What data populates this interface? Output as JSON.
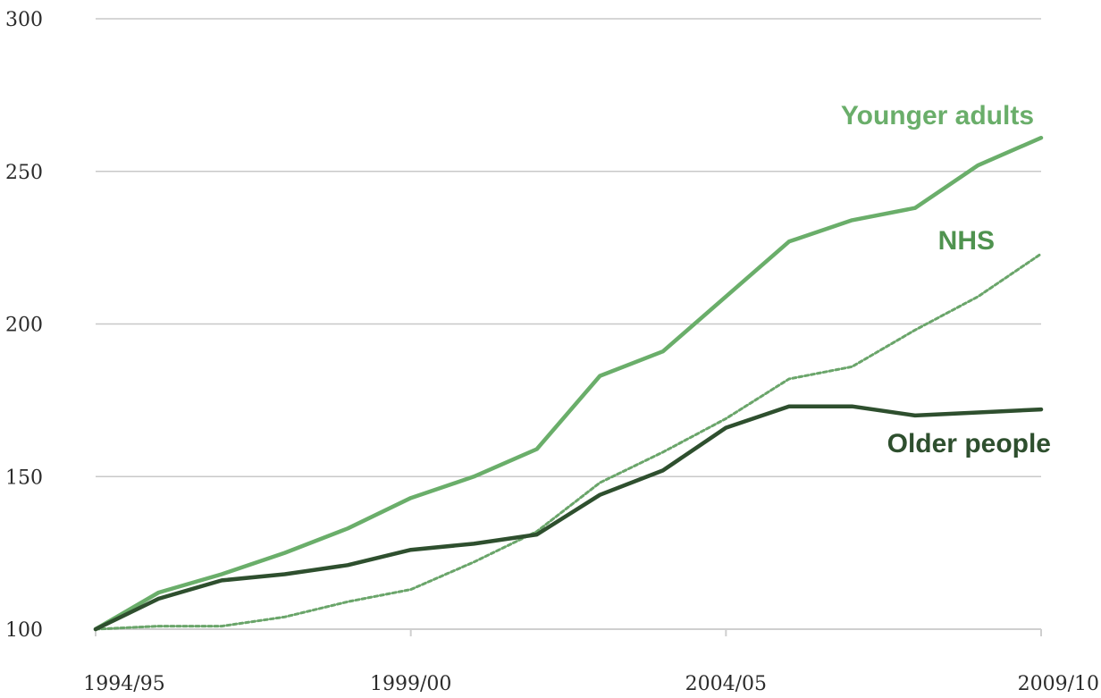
{
  "chart_data": {
    "type": "line",
    "title": "",
    "xlabel": "",
    "ylabel": "",
    "x": [
      "1994/95",
      "1995/96",
      "1996/97",
      "1997/98",
      "1998/99",
      "1999/00",
      "2000/01",
      "2001/02",
      "2002/03",
      "2003/04",
      "2004/05",
      "2005/06",
      "2006/07",
      "2007/08",
      "2008/09",
      "2009/10"
    ],
    "x_tick_labels": [
      "1994/95",
      "1999/00",
      "2004/05",
      "2009/10"
    ],
    "ylim": [
      100,
      300
    ],
    "y_ticks": [
      100,
      150,
      200,
      250,
      300
    ],
    "y_tick_labels": [
      "100",
      "150",
      "200",
      "250",
      "300"
    ],
    "grid": true,
    "series": [
      {
        "name": "Younger adults",
        "color": "#6aae6a",
        "style": "solid",
        "values": [
          100,
          112,
          118,
          125,
          133,
          143,
          150,
          159,
          183,
          191,
          209,
          227,
          234,
          238,
          252,
          261
        ]
      },
      {
        "name": "NHS",
        "color": "#6aa56a",
        "style": "dashed",
        "values": [
          100,
          101,
          101,
          104,
          109,
          113,
          122,
          132,
          148,
          158,
          169,
          182,
          186,
          198,
          209,
          223
        ]
      },
      {
        "name": "Older people",
        "color": "#2e4f2e",
        "style": "solid",
        "values": [
          100,
          110,
          116,
          118,
          121,
          126,
          128,
          131,
          144,
          152,
          166,
          173,
          173,
          170,
          171,
          172
        ]
      }
    ]
  }
}
